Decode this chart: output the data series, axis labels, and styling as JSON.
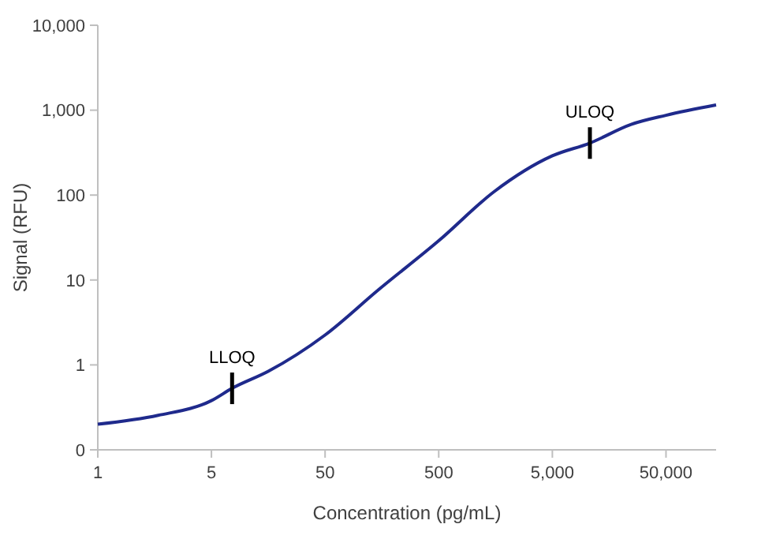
{
  "chart_data": {
    "type": "line",
    "xlabel": "Concentration (pg/mL)",
    "ylabel": "Signal (RFU)",
    "log": "xy",
    "x": [
      0.5,
      1.7,
      5,
      7.6,
      15.8,
      50,
      148,
      500,
      1540,
      5000,
      10700,
      24700,
      50000,
      138000
    ],
    "series": [
      {
        "color": "#1f2a8c",
        "values": [
          0.2,
          0.255,
          0.38,
          0.53,
          0.84,
          2.25,
          7.7,
          29,
          110,
          290,
          410,
          680,
          870,
          1150
        ]
      }
    ],
    "xlim": [
      0.5,
      138000
    ],
    "xticks": [
      {
        "value": 0.5,
        "label": "1"
      },
      {
        "value": 5,
        "label": "5"
      },
      {
        "value": 50,
        "label": "50"
      },
      {
        "value": 500,
        "label": "500"
      },
      {
        "value": 5000,
        "label": "5,000"
      },
      {
        "value": 50000,
        "label": "50,000"
      }
    ],
    "ylim": [
      0.1,
      10000
    ],
    "yticks": [
      {
        "value": 0.1,
        "label": "0"
      },
      {
        "value": 1,
        "label": "1"
      },
      {
        "value": 10,
        "label": "10"
      },
      {
        "value": 100,
        "label": "100"
      },
      {
        "value": 1000,
        "label": "1,000"
      },
      {
        "value": 10000,
        "label": "10,000"
      }
    ],
    "grid": false,
    "marker": "none",
    "line_style": "solid",
    "annotations": [
      {
        "text": "LLOQ",
        "x": 7.6,
        "y": 0.53
      },
      {
        "text": "ULOQ",
        "x": 10700,
        "y": 410
      }
    ]
  }
}
